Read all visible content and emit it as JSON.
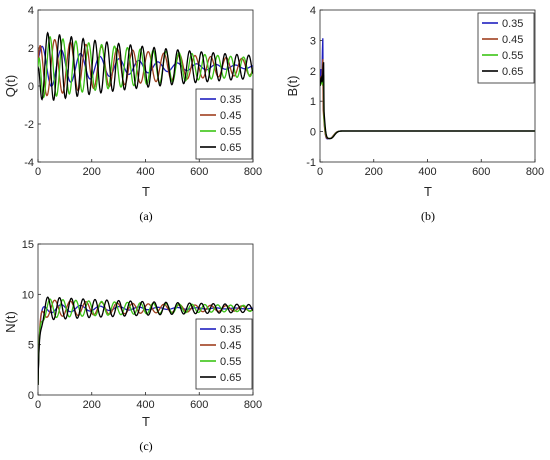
{
  "chart_data": [
    {
      "id": "a",
      "type": "line",
      "caption": "(a)",
      "xlabel": "T",
      "ylabel": "Q(t)",
      "xlim": [
        0,
        800
      ],
      "ylim": [
        -4,
        4
      ],
      "xticks": [
        "0",
        "200",
        "400",
        "600",
        "800"
      ],
      "yticks": [
        "4",
        "2",
        "0",
        "-2",
        "-4"
      ],
      "grid": false,
      "legend_position": "lower-right",
      "series": [
        {
          "name": "0.35",
          "color": "#1f1fbf",
          "dynamics": {
            "start": 1.5,
            "mean": 1.0,
            "amp": 1.2,
            "period": 72,
            "decay": 300,
            "phase": 0.3
          }
        },
        {
          "name": "0.45",
          "color": "#a0401f",
          "dynamics": {
            "start": 1.2,
            "mean": 1.0,
            "amp": 1.6,
            "period": 58,
            "decay": 600,
            "phase": 1.1
          }
        },
        {
          "name": "0.55",
          "color": "#3cc416",
          "dynamics": {
            "start": 1.0,
            "mean": 1.0,
            "amp": 1.7,
            "period": 48,
            "decay": 650,
            "phase": 2.0
          }
        },
        {
          "name": "0.65",
          "color": "#000000",
          "dynamics": {
            "start": 0.8,
            "mean": 1.0,
            "amp": 1.9,
            "period": 44,
            "decay": 700,
            "phase": 2.7
          }
        }
      ]
    },
    {
      "id": "b",
      "type": "line",
      "caption": "(b)",
      "xlabel": "T",
      "ylabel": "B(t)",
      "xlim": [
        0,
        800
      ],
      "ylim": [
        -1,
        4
      ],
      "xticks": [
        "0",
        "200",
        "400",
        "600",
        "800"
      ],
      "yticks": [
        "4",
        "3",
        "2",
        "1",
        "0",
        "-1"
      ],
      "grid": false,
      "legend_position": "top-right",
      "series": [
        {
          "name": "0.35",
          "color": "#1f1fbf",
          "spike": 3.1,
          "spike_t": 12
        },
        {
          "name": "0.45",
          "color": "#a0401f",
          "spike": 2.4,
          "spike_t": 12
        },
        {
          "name": "0.55",
          "color": "#3cc416",
          "spike": 1.9,
          "spike_t": 14
        },
        {
          "name": "0.65",
          "color": "#000000",
          "spike": 2.3,
          "spike_t": 15
        }
      ]
    },
    {
      "id": "c",
      "type": "line",
      "caption": "(c)",
      "xlabel": "T",
      "ylabel": "N(t)",
      "xlim": [
        0,
        800
      ],
      "ylim": [
        0,
        15
      ],
      "xticks": [
        "0",
        "200",
        "400",
        "600",
        "800"
      ],
      "yticks": [
        "15",
        "10",
        "5",
        "0"
      ],
      "grid": false,
      "legend_position": "lower-right",
      "series": [
        {
          "name": "0.35",
          "color": "#1f1fbf",
          "dynamics": {
            "start": 1.0,
            "mean": 8.6,
            "amp": 0.5,
            "period": 72,
            "decay": 300,
            "phase": 0.3
          }
        },
        {
          "name": "0.45",
          "color": "#a0401f",
          "dynamics": {
            "start": 1.0,
            "mean": 8.6,
            "amp": 0.9,
            "period": 58,
            "decay": 600,
            "phase": 1.1
          }
        },
        {
          "name": "0.55",
          "color": "#3cc416",
          "dynamics": {
            "start": 1.0,
            "mean": 8.6,
            "amp": 1.0,
            "period": 48,
            "decay": 650,
            "phase": 2.0
          }
        },
        {
          "name": "0.65",
          "color": "#000000",
          "dynamics": {
            "start": 1.0,
            "mean": 8.6,
            "amp": 1.2,
            "period": 44,
            "decay": 700,
            "phase": 2.7
          }
        }
      ]
    }
  ]
}
